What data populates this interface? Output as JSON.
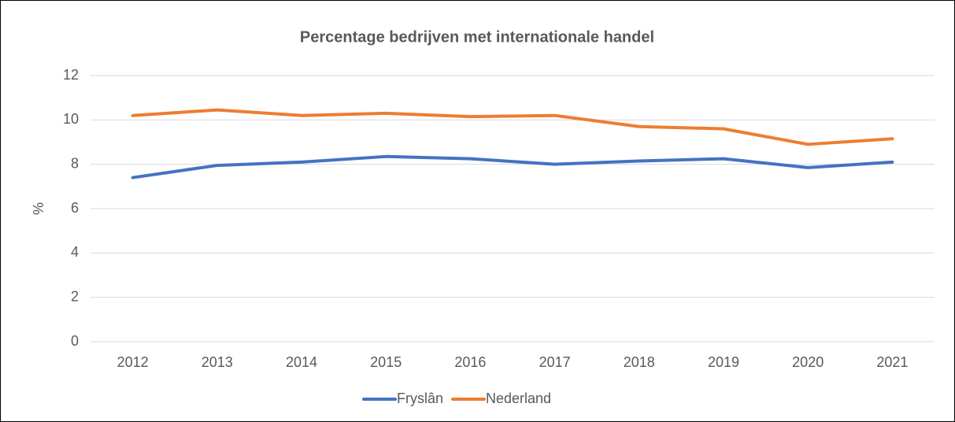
{
  "chart_data": {
    "type": "line",
    "title": "Percentage bedrijven met internationale handel",
    "y_label": "%",
    "categories": [
      "2012",
      "2013",
      "2014",
      "2015",
      "2016",
      "2017",
      "2018",
      "2019",
      "2020",
      "2021"
    ],
    "series": [
      {
        "name": "Fryslân",
        "color": "#4472c4",
        "values": [
          7.4,
          7.95,
          8.1,
          8.35,
          8.25,
          8.0,
          8.15,
          8.25,
          7.85,
          8.1
        ]
      },
      {
        "name": "Nederland",
        "color": "#ed7d31",
        "values": [
          10.2,
          10.45,
          10.2,
          10.3,
          10.15,
          10.2,
          9.7,
          9.6,
          8.9,
          9.15
        ]
      }
    ],
    "ylim": [
      0,
      12
    ],
    "yticks": [
      0,
      2,
      4,
      6,
      8,
      10,
      12
    ],
    "grid": true,
    "legend": "bottom"
  }
}
